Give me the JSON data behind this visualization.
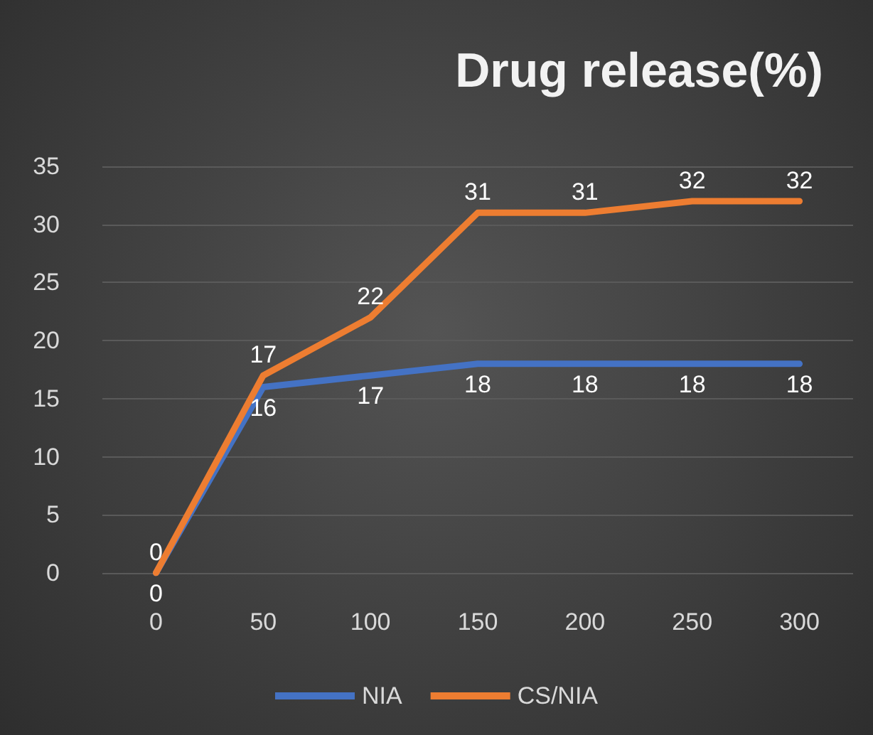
{
  "chart_data": {
    "type": "line",
    "title": "Drug release(%)",
    "categories": [
      "0",
      "50",
      "100",
      "150",
      "200",
      "250",
      "300"
    ],
    "series": [
      {
        "name": "NIA",
        "color": "#4472c4",
        "values": [
          0,
          16,
          17,
          18,
          18,
          18,
          18
        ]
      },
      {
        "name": "CS/NIA",
        "color": "#ed7d31",
        "values": [
          0,
          17,
          22,
          31,
          31,
          32,
          32
        ]
      }
    ],
    "ylim": [
      0,
      35
    ],
    "yticks": [
      0,
      5,
      10,
      15,
      20,
      25,
      30,
      35
    ],
    "grid": "y",
    "legend": "bottom",
    "data_labels": true,
    "marker": "none",
    "line_style": "solid"
  }
}
